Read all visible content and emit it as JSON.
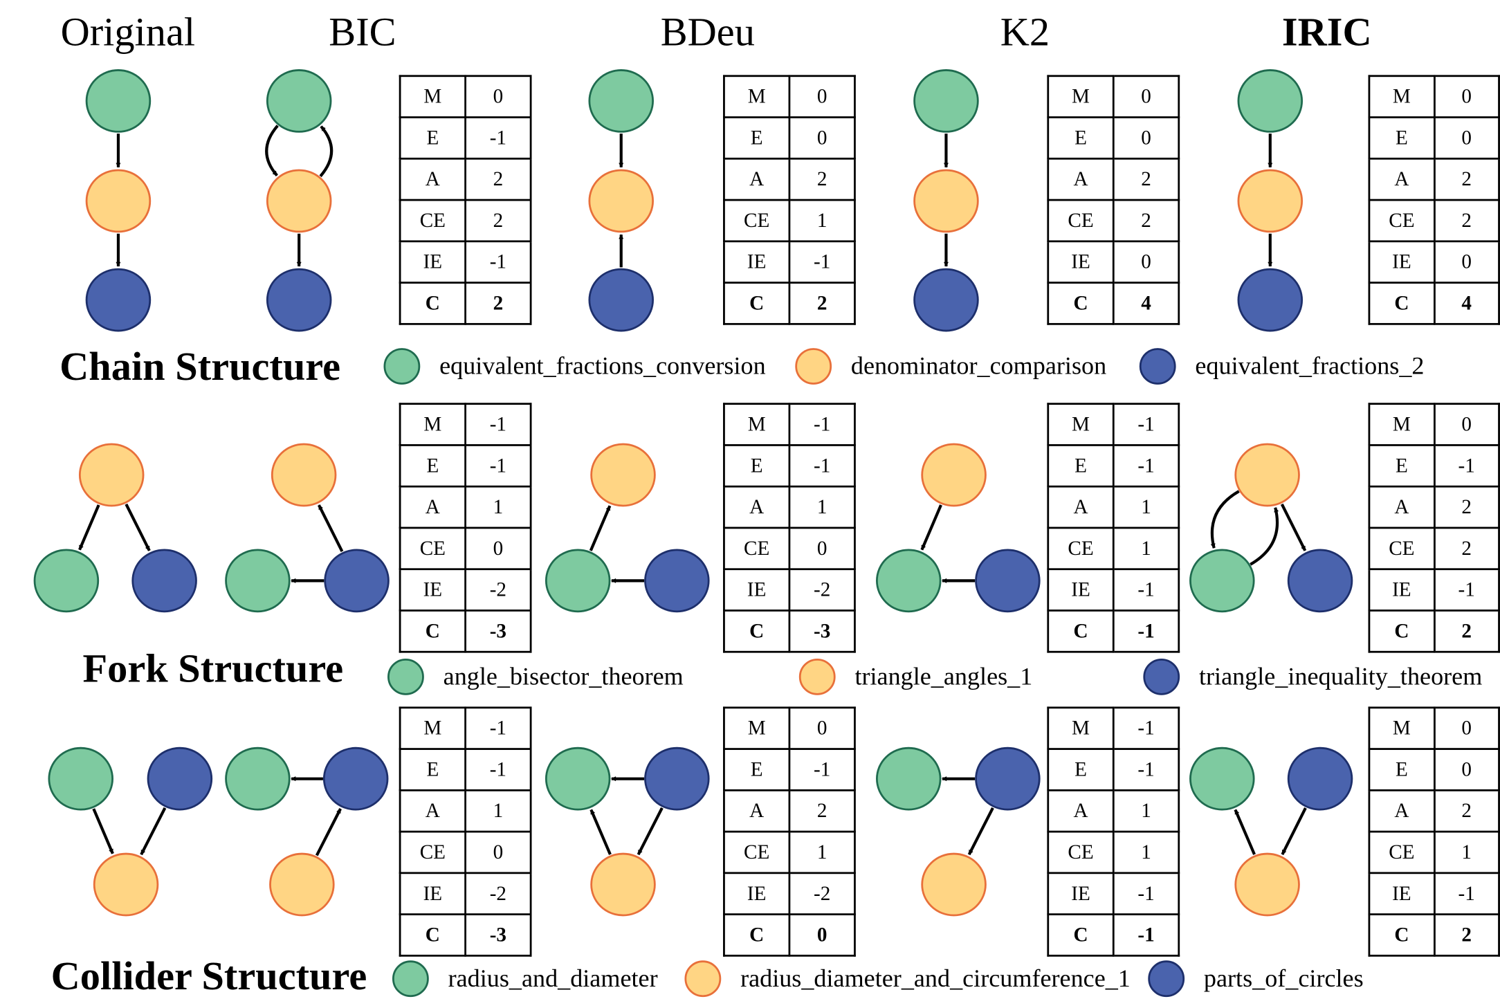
{
  "colors": {
    "green": {
      "fill": "#7ecaa0",
      "stroke": "#1f6b4f"
    },
    "orange": {
      "fill": "#ffd584",
      "stroke": "#e8703a"
    },
    "blue": {
      "fill": "#4a63ad",
      "stroke": "#1d2f6b"
    }
  },
  "methods": [
    "Original",
    "BIC",
    "BDeu",
    "K2",
    "IRIC"
  ],
  "metric_labels": [
    "M",
    "E",
    "A",
    "CE",
    "IE",
    "C"
  ],
  "rows": [
    {
      "section_title": "Chain Structure",
      "legend": [
        {
          "color": "green",
          "label": "equivalent_fractions_conversion"
        },
        {
          "color": "orange",
          "label": "denominator_comparison"
        },
        {
          "color": "blue",
          "label": "equivalent_fractions_2"
        }
      ],
      "tables": [
        [
          "0",
          "-1",
          "2",
          "2",
          "-1",
          "2"
        ],
        [
          "0",
          "0",
          "2",
          "1",
          "-1",
          "2"
        ],
        [
          "0",
          "0",
          "2",
          "2",
          "0",
          "4"
        ],
        [
          "0",
          "0",
          "2",
          "2",
          "0",
          "4"
        ]
      ]
    },
    {
      "section_title": "Fork Structure",
      "legend": [
        {
          "color": "green",
          "label": "angle_bisector_theorem"
        },
        {
          "color": "orange",
          "label": "triangle_angles_1"
        },
        {
          "color": "blue",
          "label": "triangle_inequality_theorem"
        }
      ],
      "tables": [
        [
          "-1",
          "-1",
          "1",
          "0",
          "-2",
          "-3"
        ],
        [
          "-1",
          "-1",
          "1",
          "0",
          "-2",
          "-3"
        ],
        [
          "-1",
          "-1",
          "1",
          "1",
          "-1",
          "-1"
        ],
        [
          "0",
          "-1",
          "2",
          "2",
          "-1",
          "2"
        ]
      ]
    },
    {
      "section_title": "Collider Structure",
      "legend": [
        {
          "color": "green",
          "label": "radius_and_diameter"
        },
        {
          "color": "orange",
          "label": "radius_diameter_and_circumference_1"
        },
        {
          "color": "blue",
          "label": "parts_of_circles"
        }
      ],
      "tables": [
        [
          "-1",
          "-1",
          "1",
          "0",
          "-2",
          "-3"
        ],
        [
          "0",
          "-1",
          "2",
          "1",
          "-2",
          "0"
        ],
        [
          "-1",
          "-1",
          "1",
          "1",
          "-1",
          "-1"
        ],
        [
          "0",
          "0",
          "2",
          "1",
          "-1",
          "2"
        ]
      ]
    }
  ]
}
